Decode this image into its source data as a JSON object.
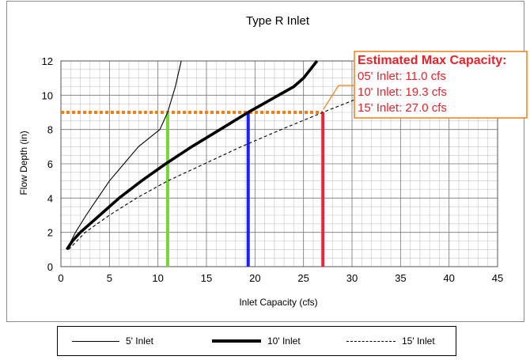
{
  "chart_data": {
    "type": "line",
    "title": "Type R Inlet",
    "xlabel": "Inlet Capacity (cfs)",
    "ylabel": "Flow Depth (in)",
    "xlim": [
      0,
      45
    ],
    "ylim": [
      0,
      12
    ],
    "x_ticks": [
      "0",
      "5",
      "10",
      "15",
      "20",
      "25",
      "30",
      "35",
      "40",
      "45"
    ],
    "y_ticks": [
      "0",
      "2",
      "4",
      "6",
      "8",
      "10",
      "12"
    ],
    "grid": true,
    "series": [
      {
        "name": "5' Inlet",
        "style": "thin-solid",
        "color": "#000000",
        "points": [
          [
            0.6,
            1.0
          ],
          [
            1.5,
            2.0
          ],
          [
            2.6,
            3.0
          ],
          [
            3.8,
            4.0
          ],
          [
            5.0,
            5.0
          ],
          [
            6.5,
            6.0
          ],
          [
            8.0,
            7.0
          ],
          [
            10.2,
            8.0
          ],
          [
            11.0,
            9.0
          ],
          [
            11.8,
            10.5
          ],
          [
            12.4,
            12.0
          ]
        ]
      },
      {
        "name": "10' Inlet",
        "style": "thick-solid",
        "color": "#000000",
        "points": [
          [
            0.6,
            1.0
          ],
          [
            1.2,
            1.5
          ],
          [
            2.0,
            2.0
          ],
          [
            4.0,
            3.0
          ],
          [
            6.0,
            4.0
          ],
          [
            8.3,
            5.0
          ],
          [
            10.8,
            6.0
          ],
          [
            13.5,
            7.0
          ],
          [
            16.4,
            8.0
          ],
          [
            19.3,
            9.0
          ],
          [
            24.0,
            10.5
          ],
          [
            25.0,
            11.0
          ],
          [
            26.4,
            12.0
          ]
        ]
      },
      {
        "name": "15' Inlet",
        "style": "dashed",
        "color": "#000000",
        "points": [
          [
            0.8,
            1.0
          ],
          [
            2.5,
            2.0
          ],
          [
            5.0,
            3.0
          ],
          [
            7.8,
            4.0
          ],
          [
            11.0,
            5.0
          ],
          [
            14.8,
            6.0
          ],
          [
            18.6,
            7.0
          ],
          [
            22.7,
            8.0
          ],
          [
            27.0,
            9.0
          ],
          [
            31.0,
            9.9
          ]
        ]
      }
    ],
    "max_depth_line": {
      "y": 9,
      "x_range": [
        0,
        27
      ],
      "color": "#f07f16"
    },
    "capacity_markers": [
      {
        "x": 11.0,
        "y": 9,
        "color": "#7ad438"
      },
      {
        "x": 19.3,
        "y": 9,
        "color": "#1f1ff2"
      },
      {
        "x": 27.0,
        "y": 9,
        "color": "#e5263b"
      }
    ],
    "annotation": {
      "title": "Estimated Max Capacity:",
      "lines": [
        "05' Inlet: 11.0 cfs",
        "10' Inlet: 19.3 cfs",
        "15' Inlet: 27.0 cfs"
      ],
      "color": "#e8212b",
      "border_color": "#f07f16"
    },
    "legend": {
      "placement": "bottom",
      "entries": [
        {
          "label": "5' Inlet",
          "style": "thin-solid"
        },
        {
          "label": "10' Inlet",
          "style": "thick-solid"
        },
        {
          "label": "15' Inlet",
          "style": "dashed"
        }
      ]
    }
  }
}
